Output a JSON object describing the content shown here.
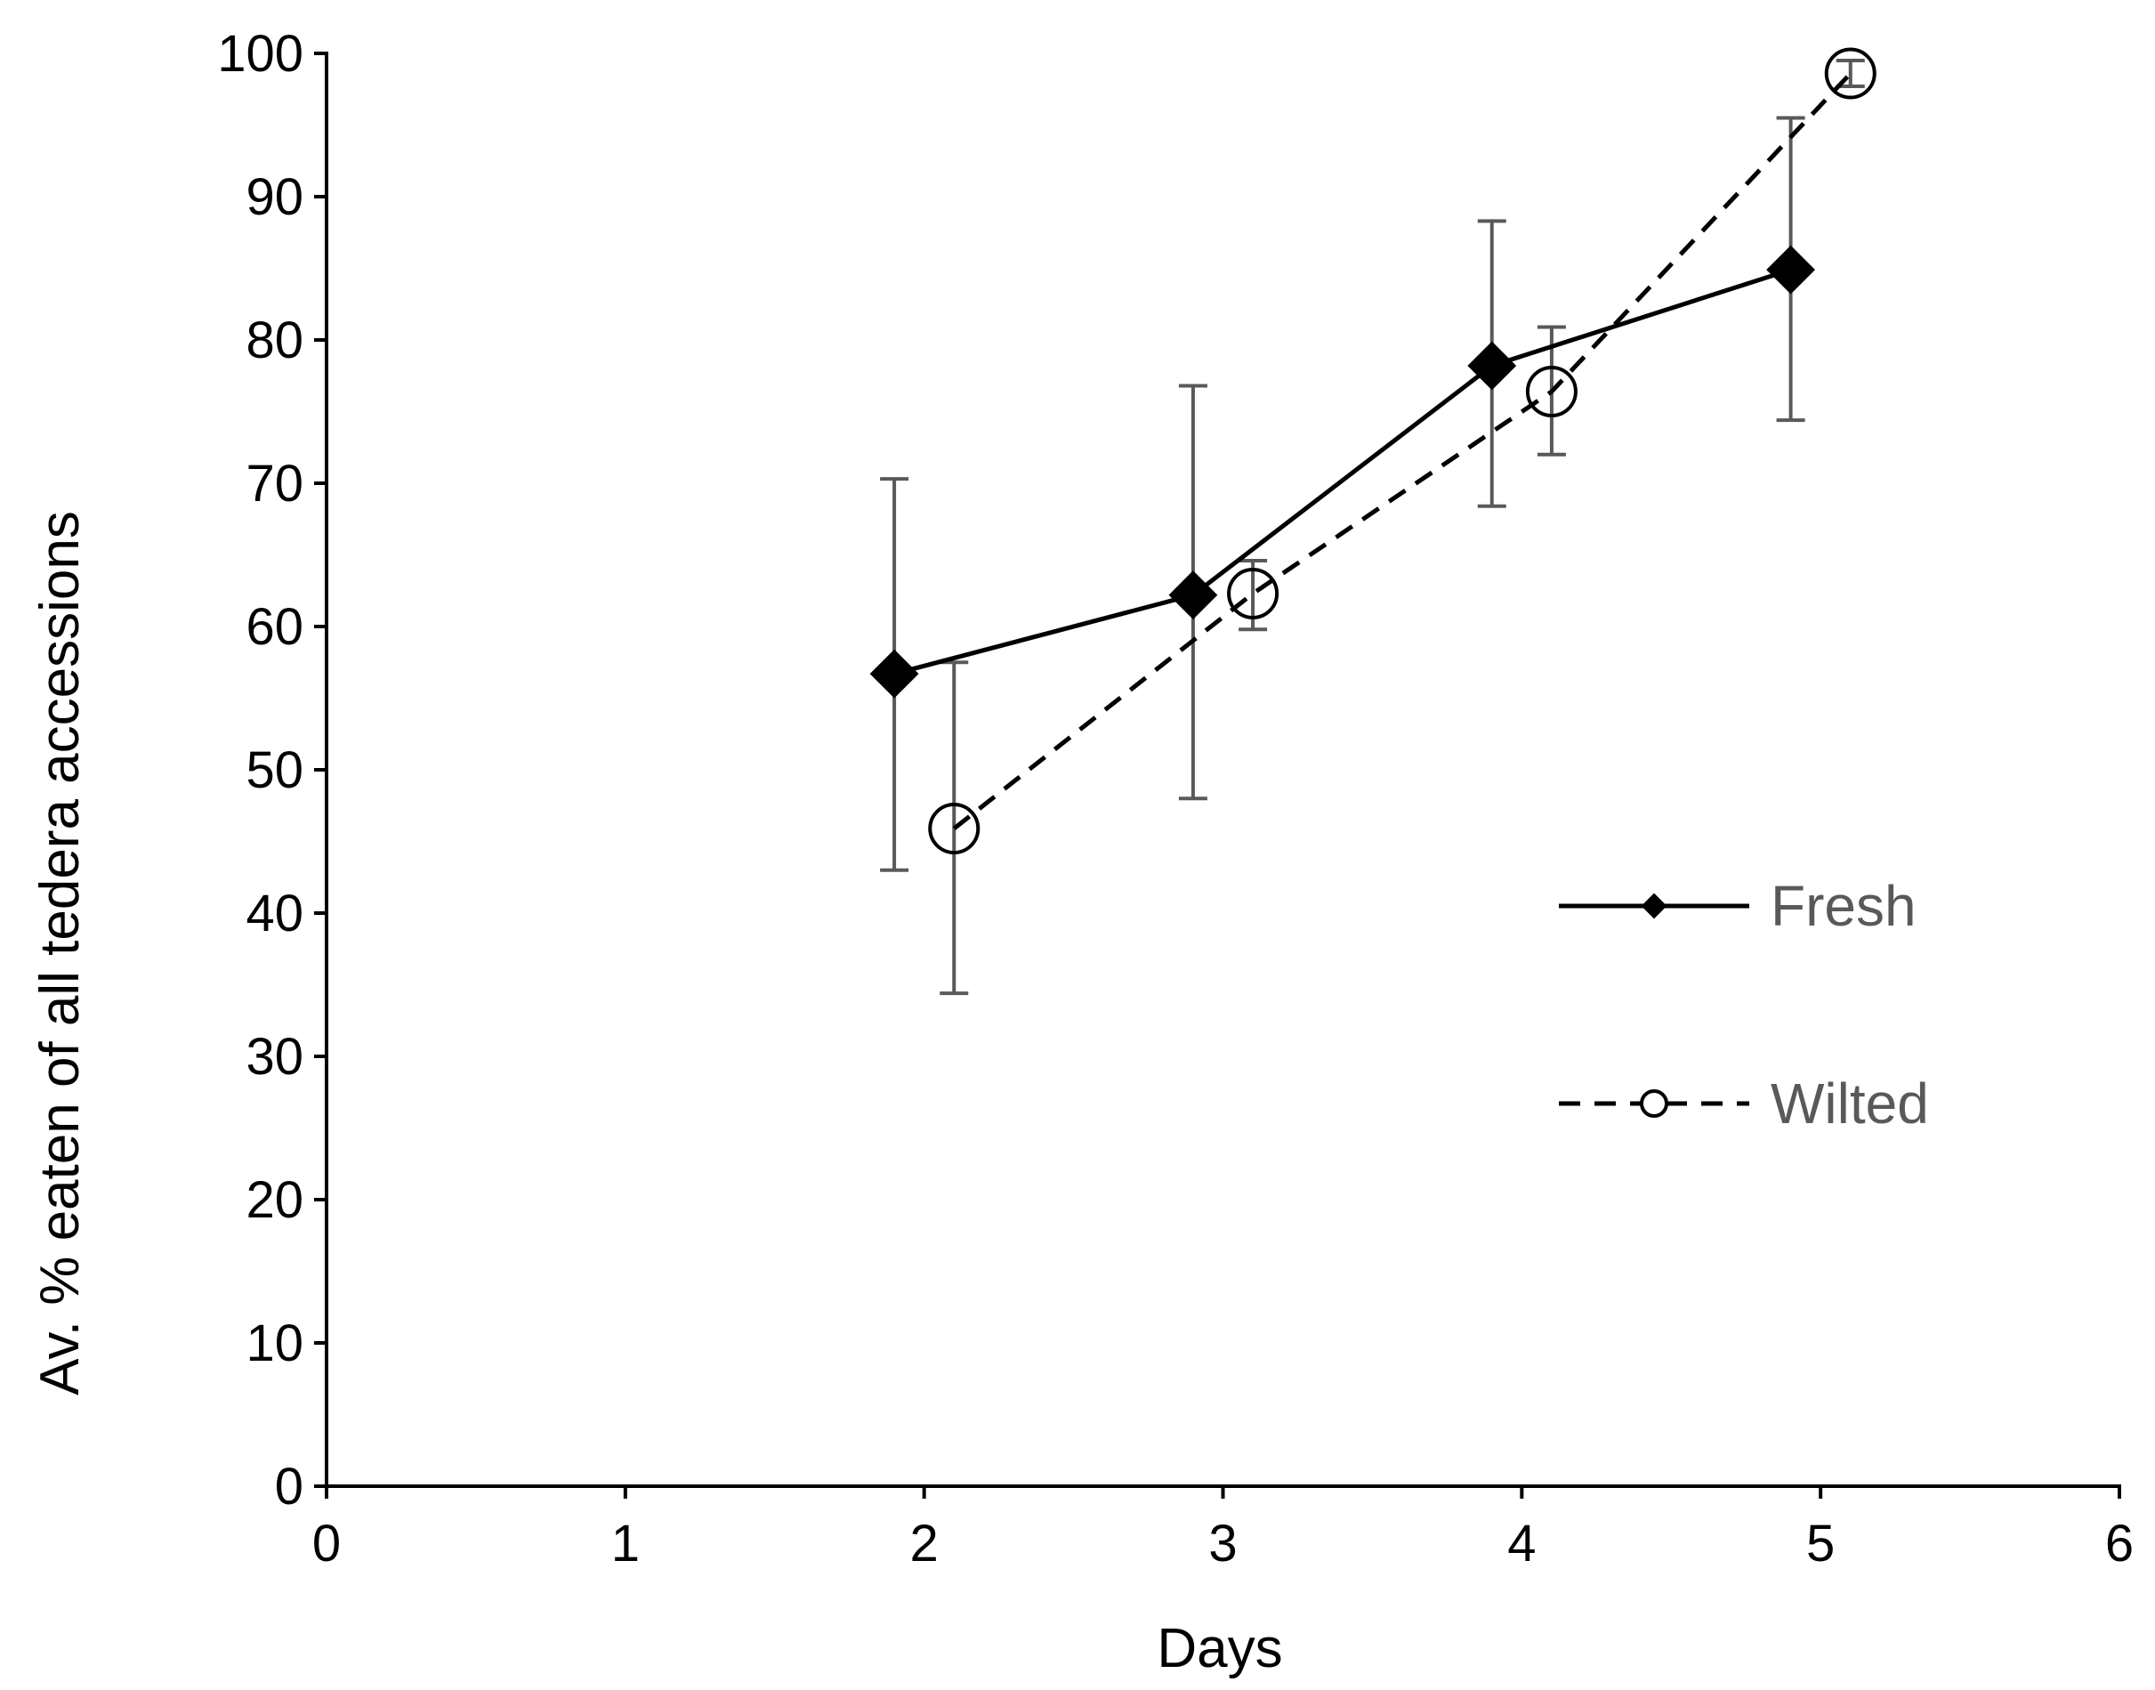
{
  "chart_data": {
    "type": "line",
    "title": "",
    "xlabel": "Days",
    "ylabel": "Av. % eaten of all tedera accessions",
    "xlim": [
      0,
      6
    ],
    "ylim": [
      0,
      100
    ],
    "xticks": [
      "0",
      "1",
      "2",
      "3",
      "4",
      "5",
      "6"
    ],
    "yticks": [
      "0",
      "10",
      "20",
      "30",
      "40",
      "50",
      "60",
      "70",
      "80",
      "90",
      "100"
    ],
    "grid": false,
    "legend_position": "right",
    "series": [
      {
        "name": "Fresh",
        "style": "solid",
        "marker": "diamond",
        "color": "#000000",
        "x": [
          1.9,
          2.9,
          3.9,
          4.9
        ],
        "y": [
          56.7,
          62.2,
          78.2,
          84.9
        ],
        "err_low": [
          43.0,
          48.0,
          68.4,
          74.4
        ],
        "err_high": [
          70.3,
          76.8,
          88.3,
          95.5
        ]
      },
      {
        "name": "Wilted",
        "style": "dashed",
        "marker": "open-circle",
        "color": "#000000",
        "x": [
          2.1,
          3.1,
          4.1,
          5.1
        ],
        "y": [
          45.9,
          62.3,
          76.4,
          98.6
        ],
        "err_low": [
          34.4,
          59.8,
          72.0,
          97.7
        ],
        "err_high": [
          57.5,
          64.6,
          80.9,
          99.5
        ]
      }
    ],
    "errorbar_color": "#595959"
  }
}
